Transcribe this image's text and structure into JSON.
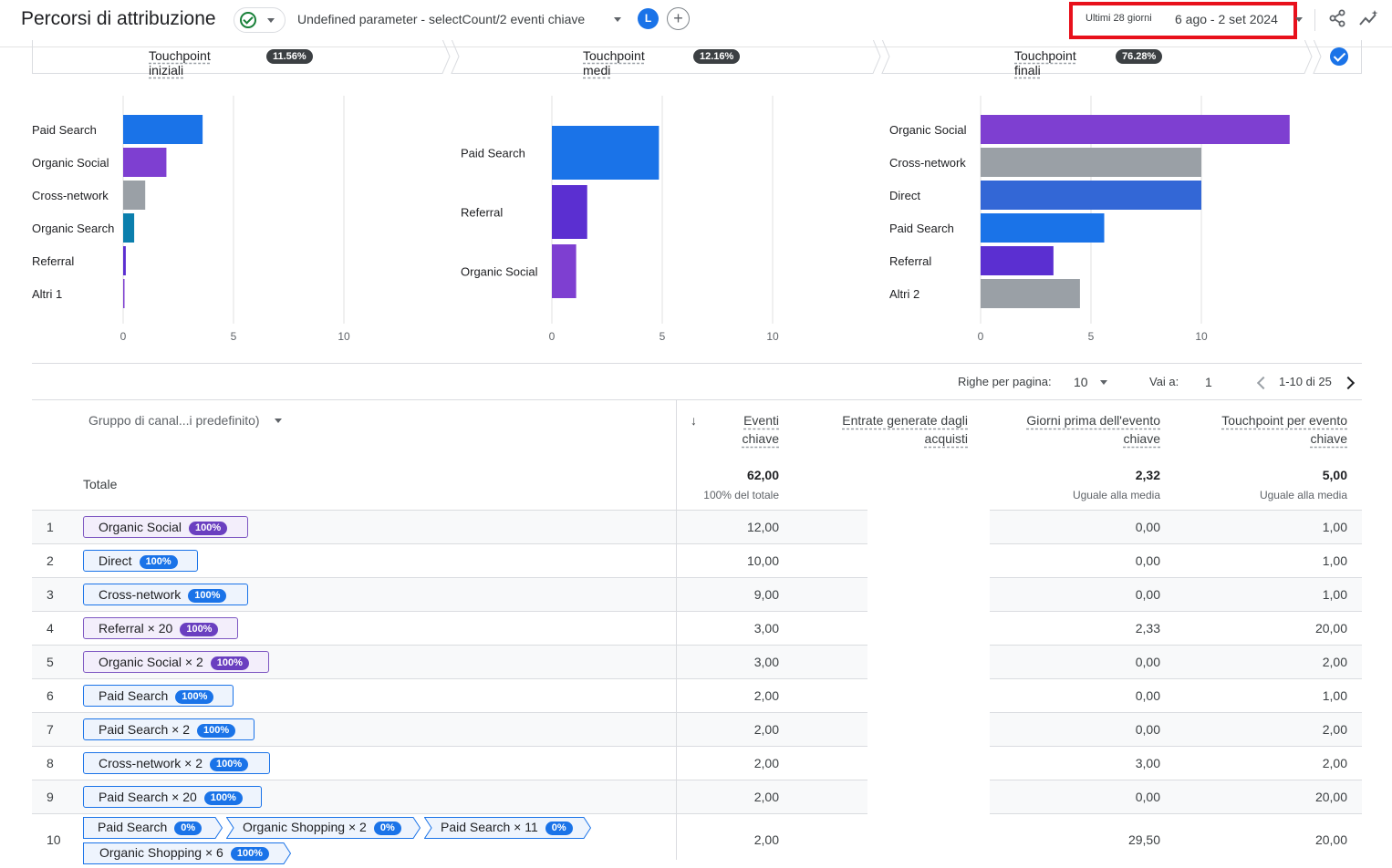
{
  "header": {
    "title": "Percorsi di attribuzione",
    "metric_selector": "Undefined parameter - selectCount/2 eventi chiave",
    "avatar_letter": "L",
    "add_symbol": "+",
    "date_label": "Ultimi 28 giorni",
    "date_range": "6 ago - 2 set 2024"
  },
  "touchpoints": [
    {
      "label": "Touchpoint iniziali",
      "pct": "11.56%"
    },
    {
      "label": "Touchpoint medi",
      "pct": "12.16%"
    },
    {
      "label": "Touchpoint finali",
      "pct": "76.28%"
    }
  ],
  "chart_data": [
    {
      "type": "bar",
      "orientation": "horizontal",
      "categories": [
        "Paid Search",
        "Organic Social",
        "Cross-network",
        "Organic Search",
        "Referral",
        "Altri 1"
      ],
      "values": [
        3.6,
        1.96,
        1.0,
        0.5,
        0.12,
        0.03
      ],
      "colors": [
        "#1a73e8",
        "#7e3fd1",
        "#9aa0a6",
        "#0b7fad",
        "#5b2fd1",
        "#7e3fd1"
      ],
      "xticks": [
        0,
        5,
        10
      ],
      "xlim": [
        0,
        10.5
      ]
    },
    {
      "type": "bar",
      "orientation": "horizontal",
      "categories": [
        "Paid Search",
        "Referral",
        "Organic Social"
      ],
      "values": [
        4.85,
        1.6,
        1.1
      ],
      "colors": [
        "#1a73e8",
        "#5b2fd1",
        "#7e3fd1"
      ],
      "xticks": [
        0,
        5,
        10
      ],
      "xlim": [
        0,
        10.5
      ]
    },
    {
      "type": "bar",
      "orientation": "horizontal",
      "categories": [
        "Organic Social",
        "Cross-network",
        "Direct",
        "Paid Search",
        "Referral",
        "Altri 2"
      ],
      "values": [
        14.0,
        10.0,
        10.0,
        5.6,
        3.3,
        4.5
      ],
      "colors": [
        "#7e3fd1",
        "#9aa0a6",
        "#3367d6",
        "#1a73e8",
        "#5b2fd1",
        "#9aa0a6"
      ],
      "xticks": [
        0,
        5,
        10
      ],
      "xlim": [
        0,
        15
      ]
    }
  ],
  "pager": {
    "rows_label": "Righe per pagina:",
    "rows_value": "10",
    "goto_label": "Vai a:",
    "goto_value": "1",
    "range": "1-10 di 25"
  },
  "table": {
    "dimension": "Gruppo di canal...i predefinito)",
    "columns": [
      {
        "line1": "Eventi",
        "line2": "chiave"
      },
      {
        "line1": "Entrate generate dagli",
        "line2": "acquisti"
      },
      {
        "line1": "Giorni prima dell'evento",
        "line2": "chiave"
      },
      {
        "line1": "Touchpoint per evento",
        "line2": "chiave"
      }
    ],
    "total_label": "Totale",
    "totals": {
      "events": "62,00",
      "events_sub": "100% del totale",
      "days": "2,32",
      "days_sub": "Uguale alla media",
      "touch": "5,00",
      "touch_sub": "Uguale alla media"
    },
    "rows": [
      {
        "n": "1",
        "chip": "Organic Social",
        "pct": "100%",
        "color": "purple",
        "events": "12,00",
        "days": "0,00",
        "touch": "1,00"
      },
      {
        "n": "2",
        "chip": "Direct",
        "pct": "100%",
        "color": "blue",
        "events": "10,00",
        "days": "0,00",
        "touch": "1,00"
      },
      {
        "n": "3",
        "chip": "Cross-network",
        "pct": "100%",
        "color": "blue",
        "events": "9,00",
        "days": "0,00",
        "touch": "1,00"
      },
      {
        "n": "4",
        "chip": "Referral × 20",
        "pct": "100%",
        "color": "purple",
        "events": "3,00",
        "days": "2,33",
        "touch": "20,00"
      },
      {
        "n": "5",
        "chip": "Organic Social × 2",
        "pct": "100%",
        "color": "purple",
        "events": "3,00",
        "days": "0,00",
        "touch": "2,00"
      },
      {
        "n": "6",
        "chip": "Paid Search",
        "pct": "100%",
        "color": "blue",
        "events": "2,00",
        "days": "0,00",
        "touch": "1,00"
      },
      {
        "n": "7",
        "chip": "Paid Search × 2",
        "pct": "100%",
        "color": "blue",
        "events": "2,00",
        "days": "0,00",
        "touch": "2,00"
      },
      {
        "n": "8",
        "chip": "Cross-network × 2",
        "pct": "100%",
        "color": "blue",
        "events": "2,00",
        "days": "3,00",
        "touch": "2,00"
      },
      {
        "n": "9",
        "chip": "Paid Search × 20",
        "pct": "100%",
        "color": "blue",
        "events": "2,00",
        "days": "0,00",
        "touch": "20,00"
      }
    ],
    "row10": {
      "n": "10",
      "path": [
        {
          "label": "Paid Search",
          "pct": "0%"
        },
        {
          "label": "Organic Shopping × 2",
          "pct": "0%"
        },
        {
          "label": "Paid Search × 11",
          "pct": "0%"
        },
        {
          "label": "Organic Shopping × 6",
          "pct": "100%"
        }
      ],
      "events": "2,00",
      "days": "29,50",
      "touch": "20,00"
    }
  }
}
